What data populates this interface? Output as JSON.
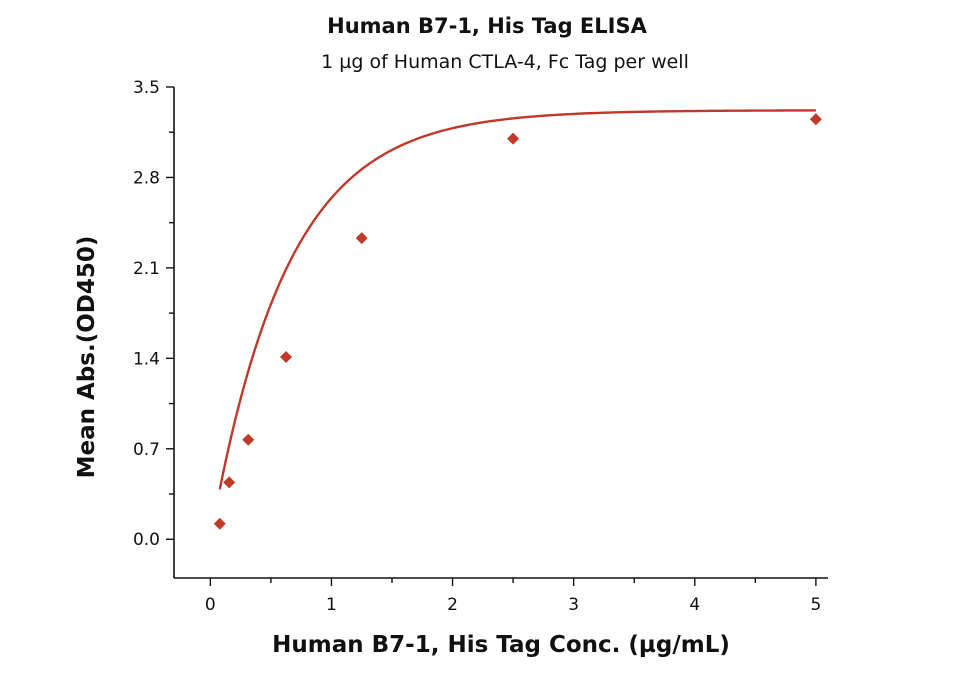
{
  "chart_data": {
    "type": "scatter",
    "title": "Human B7-1, His Tag ELISA",
    "subtitle": "1 µg of Human CTLA-4, Fc Tag per well",
    "xlabel": "Human B7-1, His Tag Conc. (µg/mL)",
    "ylabel": "Mean Abs.(OD450)",
    "xlim": [
      -0.3,
      5.1
    ],
    "ylim": [
      -0.3,
      3.5
    ],
    "x_ticks": [
      0,
      1,
      2,
      3,
      4,
      5
    ],
    "x_tick_labels": [
      "0",
      "1",
      "2",
      "3",
      "4",
      "5"
    ],
    "y_ticks": [
      0.0,
      0.7,
      1.4,
      2.1,
      2.8,
      3.5
    ],
    "y_tick_labels": [
      "0.0",
      "0.7",
      "1.4",
      "2.1",
      "2.8",
      "3.5"
    ],
    "grid": false,
    "series": [
      {
        "color": "#c0392b",
        "marker": "diamond",
        "points": [
          {
            "x": 0.078,
            "y": 0.12
          },
          {
            "x": 0.156,
            "y": 0.44
          },
          {
            "x": 0.313,
            "y": 0.77
          },
          {
            "x": 0.625,
            "y": 1.41
          },
          {
            "x": 1.25,
            "y": 2.33
          },
          {
            "x": 2.5,
            "y": 3.1
          },
          {
            "x": 5.0,
            "y": 3.25
          }
        ],
        "fit": {
          "type": "saturation",
          "bmax": 3.32,
          "k": 0.63,
          "x_range": [
            0.078,
            5.0
          ]
        }
      }
    ]
  }
}
